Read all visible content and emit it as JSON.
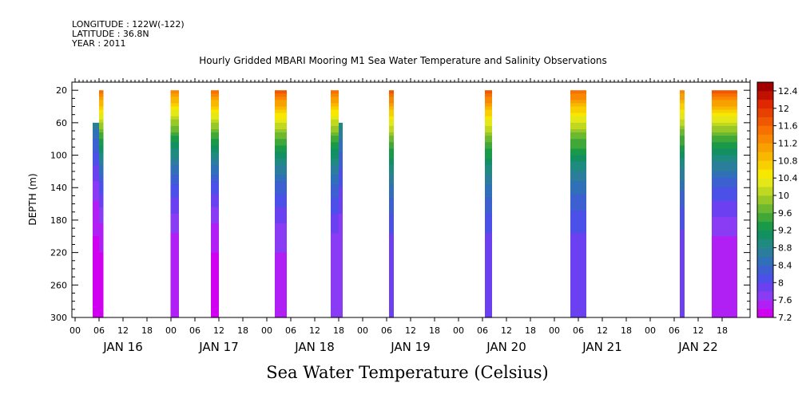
{
  "header": {
    "longitude": "LONGITUDE : 122W(-122)",
    "latitude": "LATITUDE : 36.8N",
    "year": "YEAR : 2011"
  },
  "chart_data": {
    "type": "heatmap",
    "title": "Hourly Gridded MBARI Mooring M1 Sea Water Temperature and Salinity Observations",
    "xlabel": "Sea Water Temperature (Celsius)",
    "ylabel": "DEPTH (m)",
    "x_units": "hours since JAN 15 00:00 (2011)",
    "xlim": [
      48,
      192
    ],
    "ylim": [
      300,
      10
    ],
    "y_axis_inverted": true,
    "y_ticks": [
      20,
      60,
      100,
      140,
      180,
      220,
      260,
      300
    ],
    "x_hour_ticks": [
      "00",
      "06",
      "12",
      "18",
      "00",
      "06",
      "12",
      "18",
      "00",
      "06",
      "12",
      "18",
      "00",
      "06",
      "12",
      "18",
      "00",
      "06",
      "12",
      "18",
      "00",
      "06",
      "12",
      "18",
      "00",
      "06",
      "12",
      "18"
    ],
    "x_day_labels": [
      "JAN 16",
      "JAN 17",
      "JAN 18",
      "JAN 19",
      "JAN 20",
      "JAN 21",
      "JAN 22"
    ],
    "colorbar": {
      "levels": [
        7.2,
        7.4,
        7.6,
        7.8,
        8.0,
        8.2,
        8.4,
        8.6,
        8.8,
        9.0,
        9.2,
        9.4,
        9.6,
        9.8,
        10.0,
        10.2,
        10.4,
        10.6,
        10.8,
        11.0,
        11.2,
        11.4,
        11.6,
        11.8,
        12.0,
        12.2,
        12.4
      ],
      "labels": [
        "12.4",
        "12",
        "11.6",
        "11.2",
        "10.8",
        "10.4",
        "10",
        "9.6",
        "9.2",
        "8.8",
        "8.4",
        "8",
        "7.6",
        "7.2"
      ],
      "colors": [
        "#d000f0",
        "#b020f5",
        "#8a3cf5",
        "#6a40f0",
        "#4a50e8",
        "#3c60d0",
        "#2f70b8",
        "#2a7e9c",
        "#1f8a80",
        "#129062",
        "#1a9a48",
        "#40a838",
        "#6cb830",
        "#98c828",
        "#c0d820",
        "#e4e818",
        "#f8e800",
        "#f8d000",
        "#f8b800",
        "#f8a000",
        "#f88800",
        "#f87000",
        "#f05800",
        "#e84000",
        "#e02800",
        "#c01000",
        "#a00000"
      ]
    },
    "profiles": [
      {
        "x0": 52.4,
        "x1": 54.0,
        "top_depth": 60,
        "surface": 9.6,
        "deep": 7.3
      },
      {
        "x0": 54.0,
        "x1": 55.1,
        "top_depth": 20,
        "surface": 11.6,
        "deep": 7.3
      },
      {
        "x0": 71.9,
        "x1": 74.0,
        "top_depth": 20,
        "surface": 11.4,
        "deep": 7.4
      },
      {
        "x0": 82.0,
        "x1": 84.0,
        "top_depth": 20,
        "surface": 11.6,
        "deep": 7.3
      },
      {
        "x0": 98.0,
        "x1": 101.0,
        "top_depth": 20,
        "surface": 11.8,
        "deep": 7.5
      },
      {
        "x0": 112.0,
        "x1": 114.0,
        "top_depth": 20,
        "surface": 11.6,
        "deep": 7.6
      },
      {
        "x0": 114.0,
        "x1": 115.0,
        "top_depth": 60,
        "surface": 9.7,
        "deep": 7.6
      },
      {
        "x0": 126.6,
        "x1": 127.8,
        "top_depth": 20,
        "surface": 11.8,
        "deep": 7.8
      },
      {
        "x0": 150.6,
        "x1": 152.4,
        "top_depth": 20,
        "surface": 11.8,
        "deep": 7.8
      },
      {
        "x0": 172.0,
        "x1": 176.0,
        "top_depth": 20,
        "surface": 11.6,
        "deep": 7.8
      },
      {
        "x0": 199.4,
        "x1": 200.6,
        "top_depth": 20,
        "surface": 11.4,
        "deep": 7.8
      },
      {
        "x0": 207.4,
        "x1": 213.8,
        "top_depth": 20,
        "surface": 11.8,
        "deep": 7.4
      }
    ]
  }
}
